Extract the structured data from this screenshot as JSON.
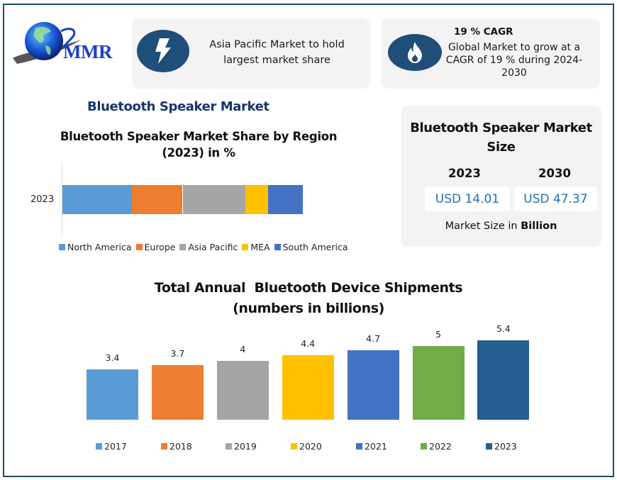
{
  "brand": {
    "logo_text": "MMR",
    "logo_icon": "globe-icon"
  },
  "cards": {
    "region": {
      "icon": "lightning-bolt-icon",
      "text_line1": "Asia Pacific Market to hold",
      "text_line2": "largest market share"
    },
    "cagr": {
      "icon": "fire-icon",
      "title": "19 % CAGR",
      "text_line1": "Global Market to grow at a",
      "text_line2": "CAGR of 19 % during 2024-",
      "text_line3": "2030"
    }
  },
  "section_title": "Bluetooth Speaker Market",
  "market_size": {
    "title_line1": "Bluetooth Speaker Market",
    "title_line2": "Size",
    "years": [
      {
        "year": "2023",
        "value": "USD 14.01"
      },
      {
        "year": "2030",
        "value": "USD 47.37"
      }
    ],
    "note_prefix": "Market Size in ",
    "note_unit": "Billion"
  },
  "colors": {
    "accent": "#1f4e79",
    "frame": "#1e4d66",
    "section_title": "#17366b",
    "usd_text": "#1f6fb4",
    "card_bg": "#f3f3f3"
  },
  "chart_data": [
    {
      "type": "bar",
      "orientation": "horizontal-stacked-100",
      "title_line1": "Bluetooth Speaker Market Share by Region",
      "title_line2": "(2023) in %",
      "categories": [
        "2023"
      ],
      "series": [
        {
          "name": "North America",
          "values": [
            29
          ],
          "color": "#5b9bd5"
        },
        {
          "name": "Europe",
          "values": [
            21
          ],
          "color": "#ed7d31"
        },
        {
          "name": "Asia Pacific",
          "values": [
            26
          ],
          "color": "#a5a5a5"
        },
        {
          "name": "MEA",
          "values": [
            9.5
          ],
          "color": "#ffc000"
        },
        {
          "name": "South America",
          "values": [
            14.5
          ],
          "color": "#4472c4"
        }
      ],
      "xlim": [
        0,
        100
      ],
      "grid": false,
      "legend": "bottom"
    },
    {
      "type": "bar",
      "title_line1": "Total Annual  Bluetooth Device Shipments",
      "title_line2": "(numbers in billions)",
      "categories": [
        "2017",
        "2018",
        "2019",
        "2020",
        "2021",
        "2022",
        "2023"
      ],
      "values": [
        3.4,
        3.7,
        4,
        4.4,
        4.7,
        5,
        5.4
      ],
      "labels": [
        "3.4",
        "3.7",
        "4",
        "4.4",
        "4.7",
        "5",
        "5.4"
      ],
      "colors": [
        "#5b9bd5",
        "#ed7d31",
        "#a5a5a5",
        "#ffc000",
        "#4472c4",
        "#70ad47",
        "#255e91"
      ],
      "ylim": [
        0,
        6
      ],
      "grid": false,
      "legend": "bottom",
      "xlabel": "",
      "ylabel": ""
    }
  ]
}
